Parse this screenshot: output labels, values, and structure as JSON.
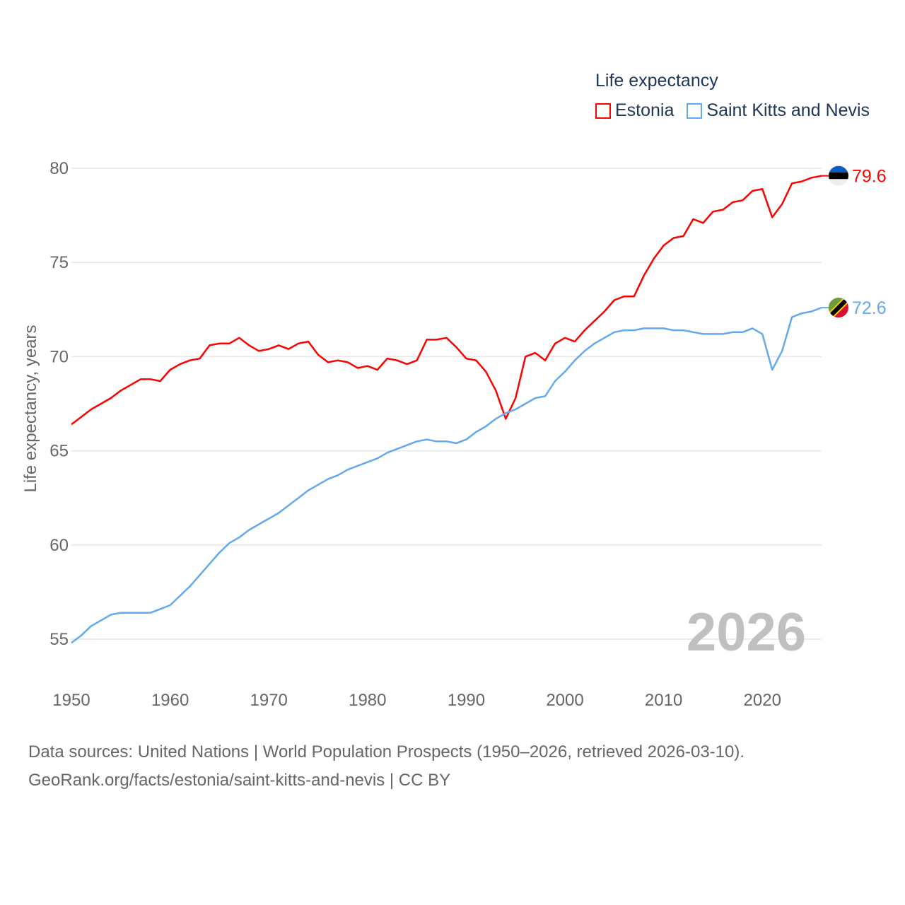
{
  "chart_data": {
    "type": "line",
    "title": "",
    "xlabel": "",
    "ylabel": "Life expectancy, years",
    "xlim": [
      1950,
      2026
    ],
    "ylim": [
      55,
      80
    ],
    "x_ticks": [
      "1950",
      "1960",
      "1970",
      "1980",
      "1990",
      "2000",
      "2010",
      "2020"
    ],
    "y_ticks": [
      "55",
      "60",
      "65",
      "70",
      "75",
      "80"
    ],
    "grid": true,
    "legend_title": "Life expectancy",
    "legend_position": "top-right",
    "watermark_year": "2026",
    "x": [
      1950,
      1951,
      1952,
      1953,
      1954,
      1955,
      1956,
      1957,
      1958,
      1959,
      1960,
      1961,
      1962,
      1963,
      1964,
      1965,
      1966,
      1967,
      1968,
      1969,
      1970,
      1971,
      1972,
      1973,
      1974,
      1975,
      1976,
      1977,
      1978,
      1979,
      1980,
      1981,
      1982,
      1983,
      1984,
      1985,
      1986,
      1987,
      1988,
      1989,
      1990,
      1991,
      1992,
      1993,
      1994,
      1995,
      1996,
      1997,
      1998,
      1999,
      2000,
      2001,
      2002,
      2003,
      2004,
      2005,
      2006,
      2007,
      2008,
      2009,
      2010,
      2011,
      2012,
      2013,
      2014,
      2015,
      2016,
      2017,
      2018,
      2019,
      2020,
      2021,
      2022,
      2023,
      2024,
      2025,
      2026
    ],
    "series": [
      {
        "name": "Estonia",
        "color": "#ff0000",
        "end_label": "79.6",
        "flag": "estonia-flag",
        "values": [
          66.4,
          66.8,
          67.2,
          67.5,
          67.8,
          68.2,
          68.5,
          68.8,
          68.8,
          68.7,
          69.3,
          69.6,
          69.8,
          69.9,
          70.6,
          70.7,
          70.7,
          71.0,
          70.6,
          70.3,
          70.4,
          70.6,
          70.4,
          70.7,
          70.8,
          70.1,
          69.7,
          69.8,
          69.7,
          69.4,
          69.5,
          69.3,
          69.9,
          69.8,
          69.6,
          69.8,
          70.9,
          70.9,
          71.0,
          70.5,
          69.9,
          69.8,
          69.2,
          68.2,
          66.7,
          67.8,
          70.0,
          70.2,
          69.8,
          70.7,
          71.0,
          70.8,
          71.4,
          71.9,
          72.4,
          73.0,
          73.2,
          73.2,
          74.3,
          75.2,
          75.9,
          76.3,
          76.4,
          77.3,
          77.1,
          77.7,
          77.8,
          78.2,
          78.3,
          78.8,
          78.9,
          77.4,
          78.1,
          79.2,
          79.3,
          79.5,
          79.6
        ]
      },
      {
        "name": "Saint Kitts and Nevis",
        "color": "#63a9ee",
        "end_label": "72.6",
        "flag": "saint-kitts-flag",
        "values": [
          54.8,
          55.2,
          55.7,
          56.0,
          56.3,
          56.4,
          56.4,
          56.4,
          56.4,
          56.6,
          56.8,
          57.3,
          57.8,
          58.4,
          59.0,
          59.6,
          60.1,
          60.4,
          60.8,
          61.1,
          61.4,
          61.7,
          62.1,
          62.5,
          62.9,
          63.2,
          63.5,
          63.7,
          64.0,
          64.2,
          64.4,
          64.6,
          64.9,
          65.1,
          65.3,
          65.5,
          65.6,
          65.5,
          65.5,
          65.4,
          65.6,
          66.0,
          66.3,
          66.7,
          67.0,
          67.2,
          67.5,
          67.8,
          67.9,
          68.7,
          69.2,
          69.8,
          70.3,
          70.7,
          71.0,
          71.3,
          71.4,
          71.4,
          71.5,
          71.5,
          71.5,
          71.4,
          71.4,
          71.3,
          71.2,
          71.2,
          71.2,
          71.3,
          71.3,
          71.5,
          71.2,
          69.3,
          70.3,
          72.1,
          72.3,
          72.4,
          72.6
        ]
      }
    ]
  },
  "source": {
    "line1": "Data sources: United Nations | World Population Prospects (1950–2026, retrieved 2026-03-10).",
    "line2": "GeoRank.org/facts/estonia/saint-kitts-and-nevis | CC BY"
  }
}
